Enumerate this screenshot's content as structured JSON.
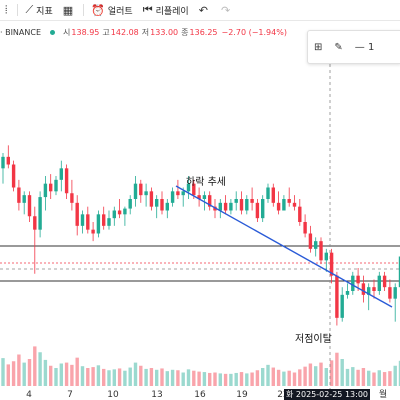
{
  "toolbar": {
    "indicator_label": "지표",
    "alert_label": "얼러트",
    "replay_label": "리플레이"
  },
  "legend": {
    "symbol": "· BINANCE",
    "open_label": "시",
    "open": "138.95",
    "high_label": "고",
    "high": "142.08",
    "low_label": "저",
    "low": "133.00",
    "close_label": "종",
    "close": "136.25",
    "change": "−2.70 (−1.94%)"
  },
  "crosshair": {
    "label": "화 2025-02-25  13:00"
  },
  "colors": {
    "up": "#22ab94",
    "down": "#f23645",
    "trend": "#2a5bd7",
    "level": "#333333"
  },
  "chart_data": {
    "type": "candlestick",
    "x_tick_labels": [
      "4",
      "7",
      "10",
      "13",
      "16",
      "19",
      "22",
      "월"
    ],
    "annotations": [
      "하락 추세",
      "저점이탈"
    ],
    "horizontal_lines": 2,
    "trend_line": "descending from 13 to 월",
    "volume_panel": true,
    "candles": [
      {
        "o": 140,
        "h": 148,
        "l": 132,
        "c": 146,
        "v": 62
      },
      {
        "o": 146,
        "h": 152,
        "l": 140,
        "c": 142,
        "v": 48
      },
      {
        "o": 142,
        "h": 144,
        "l": 128,
        "c": 130,
        "v": 55
      },
      {
        "o": 130,
        "h": 134,
        "l": 118,
        "c": 122,
        "v": 70
      },
      {
        "o": 122,
        "h": 128,
        "l": 116,
        "c": 126,
        "v": 52
      },
      {
        "o": 126,
        "h": 128,
        "l": 112,
        "c": 115,
        "v": 60
      },
      {
        "o": 115,
        "h": 120,
        "l": 85,
        "c": 108,
        "v": 88
      },
      {
        "o": 108,
        "h": 128,
        "l": 104,
        "c": 125,
        "v": 75
      },
      {
        "o": 125,
        "h": 136,
        "l": 118,
        "c": 132,
        "v": 58
      },
      {
        "o": 132,
        "h": 137,
        "l": 124,
        "c": 128,
        "v": 45
      },
      {
        "o": 128,
        "h": 136,
        "l": 126,
        "c": 134,
        "v": 40
      },
      {
        "o": 134,
        "h": 144,
        "l": 128,
        "c": 140,
        "v": 50
      },
      {
        "o": 140,
        "h": 142,
        "l": 124,
        "c": 127,
        "v": 52
      },
      {
        "o": 127,
        "h": 134,
        "l": 118,
        "c": 122,
        "v": 47
      },
      {
        "o": 122,
        "h": 126,
        "l": 105,
        "c": 110,
        "v": 63
      },
      {
        "o": 110,
        "h": 118,
        "l": 106,
        "c": 116,
        "v": 44
      },
      {
        "o": 116,
        "h": 120,
        "l": 106,
        "c": 108,
        "v": 40
      },
      {
        "o": 108,
        "h": 112,
        "l": 102,
        "c": 106,
        "v": 42
      },
      {
        "o": 106,
        "h": 118,
        "l": 104,
        "c": 116,
        "v": 46
      },
      {
        "o": 116,
        "h": 120,
        "l": 108,
        "c": 110,
        "v": 38
      },
      {
        "o": 110,
        "h": 118,
        "l": 108,
        "c": 114,
        "v": 35
      },
      {
        "o": 114,
        "h": 120,
        "l": 110,
        "c": 118,
        "v": 37
      },
      {
        "o": 118,
        "h": 124,
        "l": 114,
        "c": 116,
        "v": 39
      },
      {
        "o": 116,
        "h": 120,
        "l": 110,
        "c": 119,
        "v": 34
      },
      {
        "o": 119,
        "h": 126,
        "l": 116,
        "c": 124,
        "v": 41
      },
      {
        "o": 124,
        "h": 136,
        "l": 120,
        "c": 132,
        "v": 52
      },
      {
        "o": 132,
        "h": 134,
        "l": 122,
        "c": 126,
        "v": 45
      },
      {
        "o": 126,
        "h": 132,
        "l": 120,
        "c": 128,
        "v": 38
      },
      {
        "o": 128,
        "h": 130,
        "l": 118,
        "c": 120,
        "v": 40
      },
      {
        "o": 120,
        "h": 126,
        "l": 114,
        "c": 124,
        "v": 36
      },
      {
        "o": 124,
        "h": 128,
        "l": 116,
        "c": 118,
        "v": 39
      },
      {
        "o": 118,
        "h": 124,
        "l": 114,
        "c": 122,
        "v": 33
      },
      {
        "o": 122,
        "h": 130,
        "l": 120,
        "c": 128,
        "v": 36
      },
      {
        "o": 128,
        "h": 134,
        "l": 124,
        "c": 126,
        "v": 35
      },
      {
        "o": 126,
        "h": 130,
        "l": 120,
        "c": 128,
        "v": 30
      },
      {
        "o": 128,
        "h": 136,
        "l": 124,
        "c": 132,
        "v": 37
      },
      {
        "o": 132,
        "h": 134,
        "l": 124,
        "c": 126,
        "v": 34
      },
      {
        "o": 126,
        "h": 130,
        "l": 120,
        "c": 124,
        "v": 32
      },
      {
        "o": 124,
        "h": 128,
        "l": 118,
        "c": 126,
        "v": 31
      },
      {
        "o": 126,
        "h": 128,
        "l": 118,
        "c": 120,
        "v": 29
      },
      {
        "o": 120,
        "h": 124,
        "l": 114,
        "c": 118,
        "v": 30
      },
      {
        "o": 118,
        "h": 124,
        "l": 114,
        "c": 122,
        "v": 28
      },
      {
        "o": 122,
        "h": 126,
        "l": 116,
        "c": 118,
        "v": 27
      },
      {
        "o": 118,
        "h": 124,
        "l": 116,
        "c": 122,
        "v": 27
      },
      {
        "o": 122,
        "h": 128,
        "l": 118,
        "c": 124,
        "v": 29
      },
      {
        "o": 124,
        "h": 128,
        "l": 116,
        "c": 118,
        "v": 31
      },
      {
        "o": 118,
        "h": 126,
        "l": 116,
        "c": 124,
        "v": 28
      },
      {
        "o": 124,
        "h": 130,
        "l": 118,
        "c": 122,
        "v": 30
      },
      {
        "o": 122,
        "h": 124,
        "l": 112,
        "c": 114,
        "v": 35
      },
      {
        "o": 114,
        "h": 126,
        "l": 112,
        "c": 124,
        "v": 40
      },
      {
        "o": 124,
        "h": 132,
        "l": 122,
        "c": 130,
        "v": 47
      },
      {
        "o": 130,
        "h": 132,
        "l": 120,
        "c": 122,
        "v": 41
      },
      {
        "o": 122,
        "h": 128,
        "l": 116,
        "c": 118,
        "v": 36
      },
      {
        "o": 118,
        "h": 126,
        "l": 118,
        "c": 124,
        "v": 32
      },
      {
        "o": 124,
        "h": 130,
        "l": 120,
        "c": 122,
        "v": 34
      },
      {
        "o": 122,
        "h": 126,
        "l": 118,
        "c": 120,
        "v": 30
      },
      {
        "o": 120,
        "h": 124,
        "l": 110,
        "c": 112,
        "v": 37
      },
      {
        "o": 112,
        "h": 116,
        "l": 104,
        "c": 106,
        "v": 43
      },
      {
        "o": 106,
        "h": 110,
        "l": 96,
        "c": 98,
        "v": 50
      },
      {
        "o": 98,
        "h": 104,
        "l": 94,
        "c": 102,
        "v": 44
      },
      {
        "o": 102,
        "h": 104,
        "l": 90,
        "c": 92,
        "v": 52
      },
      {
        "o": 92,
        "h": 98,
        "l": 86,
        "c": 96,
        "v": 40
      },
      {
        "o": 96,
        "h": 98,
        "l": 80,
        "c": 84,
        "v": 57
      },
      {
        "o": 84,
        "h": 86,
        "l": 58,
        "c": 62,
        "v": 74
      },
      {
        "o": 62,
        "h": 78,
        "l": 60,
        "c": 74,
        "v": 60
      },
      {
        "o": 74,
        "h": 80,
        "l": 72,
        "c": 76,
        "v": 38
      },
      {
        "o": 76,
        "h": 86,
        "l": 74,
        "c": 84,
        "v": 42
      },
      {
        "o": 84,
        "h": 88,
        "l": 76,
        "c": 80,
        "v": 36
      },
      {
        "o": 80,
        "h": 84,
        "l": 70,
        "c": 74,
        "v": 40
      },
      {
        "o": 74,
        "h": 80,
        "l": 66,
        "c": 78,
        "v": 34
      },
      {
        "o": 78,
        "h": 82,
        "l": 72,
        "c": 76,
        "v": 30
      },
      {
        "o": 76,
        "h": 86,
        "l": 74,
        "c": 84,
        "v": 35
      },
      {
        "o": 84,
        "h": 86,
        "l": 76,
        "c": 78,
        "v": 31
      },
      {
        "o": 78,
        "h": 82,
        "l": 70,
        "c": 72,
        "v": 33
      },
      {
        "o": 72,
        "h": 80,
        "l": 60,
        "c": 78,
        "v": 45
      },
      {
        "o": 78,
        "h": 96,
        "l": 76,
        "c": 94,
        "v": 56
      },
      {
        "o": 94,
        "h": 98,
        "l": 88,
        "c": 90,
        "v": 40
      },
      {
        "o": 90,
        "h": 98,
        "l": 86,
        "c": 96,
        "v": 36
      }
    ]
  }
}
